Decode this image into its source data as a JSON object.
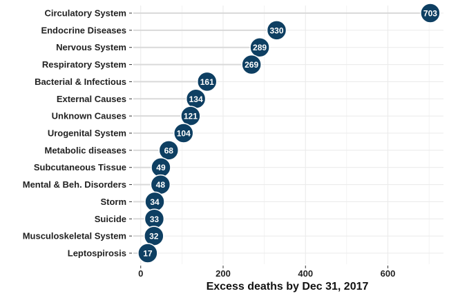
{
  "chart_data": {
    "type": "lollipop",
    "orientation": "horizontal",
    "categories": [
      "Circulatory System",
      "Endocrine Diseases",
      "Nervous System",
      "Respiratory System",
      "Bacterial & Infectious",
      "External Causes",
      "Unknown Causes",
      "Urogenital System",
      "Metabolic diseases",
      "Subcutaneous Tissue",
      "Mental & Beh. Disorders",
      "Storm",
      "Suicide",
      "Musculoskeletal System",
      "Leptospirosis"
    ],
    "values": [
      703,
      330,
      289,
      269,
      161,
      134,
      121,
      104,
      68,
      49,
      48,
      34,
      33,
      32,
      17
    ],
    "data_labels": [
      "703",
      "330",
      "289",
      "269",
      "161",
      "134",
      "121",
      "104",
      "68",
      "49",
      "48",
      "34",
      "33",
      "32",
      "17"
    ],
    "xlabel": "Excess deaths by Dec 31, 2017",
    "ylabel": "",
    "xlim": [
      -18,
      735
    ],
    "xticks": [
      0,
      200,
      400,
      600
    ],
    "xtick_labels": [
      "0",
      "200",
      "400",
      "600"
    ],
    "grid": true,
    "colors": {
      "point": "#0e3f62",
      "point_outline": "#ffffff",
      "segment": "#d9d9d9",
      "grid": "#ebebeb",
      "label": "#ffffff"
    }
  }
}
